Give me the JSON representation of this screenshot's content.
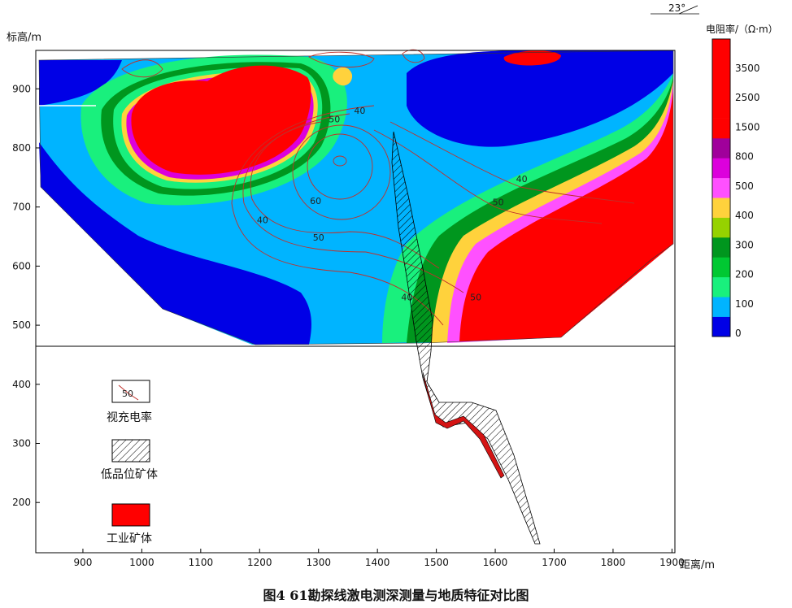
{
  "chart_data": {
    "type": "heatmap",
    "title": "",
    "caption": "图4   61勘探线激电测深测量与地质特征对比图",
    "xlabel": "距离/m",
    "ylabel": "标高/m",
    "xlim": [
      820,
      1905
    ],
    "ylim": [
      115,
      965
    ],
    "x_ticks": [
      900,
      1000,
      1100,
      1200,
      1300,
      1400,
      1500,
      1600,
      1700,
      1800,
      1900
    ],
    "y_ticks": [
      200,
      300,
      400,
      500,
      600,
      700,
      800,
      900
    ],
    "orientation_mark": "23°",
    "colorbar": {
      "title": "电阻率/（Ω·m）",
      "levels": [
        "0",
        "100",
        "200",
        "300",
        "400",
        "500",
        "800",
        "1500",
        "2500",
        "3500"
      ],
      "colors": [
        "#0000e6",
        "#00b4ff",
        "#19f07d",
        "#00c832",
        "#00961e",
        "#96d200",
        "#ffd23c",
        "#ff50ff",
        "#dc00dc",
        "#a0009b",
        "#ff0000",
        "#ff0000",
        "#ff0000",
        "#ff0000",
        "#ff0000"
      ]
    },
    "contour_labels": [
      {
        "text": "40",
        "x": 1370,
        "y": 858
      },
      {
        "text": "50",
        "x": 1327,
        "y": 843
      },
      {
        "text": "60",
        "x": 1295,
        "y": 705
      },
      {
        "text": "40",
        "x": 1205,
        "y": 673
      },
      {
        "text": "50",
        "x": 1300,
        "y": 643
      },
      {
        "text": "40",
        "x": 1645,
        "y": 742
      },
      {
        "text": "50",
        "x": 1605,
        "y": 703
      },
      {
        "text": "40",
        "x": 1450,
        "y": 542
      },
      {
        "text": "50",
        "x": 1567,
        "y": 542
      }
    ],
    "legend": [
      {
        "label": "视充电率",
        "sample": "50"
      },
      {
        "label": "低品位矿体"
      },
      {
        "label": "工业矿体"
      }
    ]
  }
}
